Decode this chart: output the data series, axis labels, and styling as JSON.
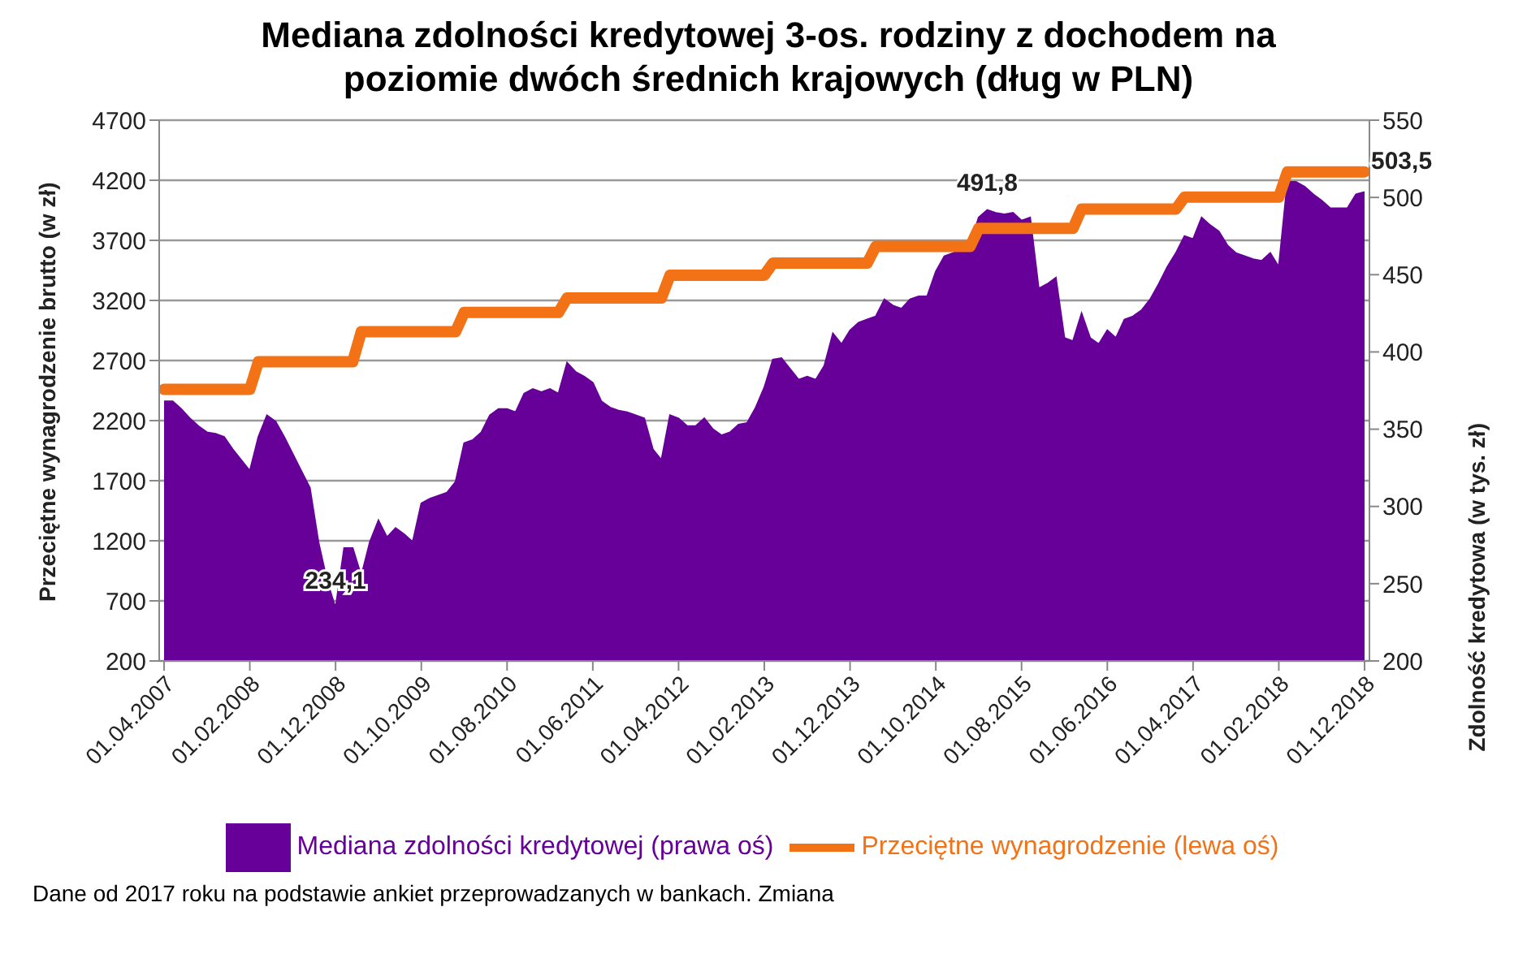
{
  "chart_data": {
    "type": "area",
    "title": "Mediana zdolności kredytowej 3-os. rodziny z dochodem na poziomie dwóch średnich krajowych (dług w PLN)",
    "ylabel": "Przeciętne wynagrodzenie brutto (w zł)",
    "y2label": "Zdolność kredytowa (w tys. zł)",
    "annotations": [
      "Dane od 2017 roku na podstawie ankiet przeprowadzanych w bankach. Zmiana"
    ],
    "categories": [
      "01.04.2007",
      null,
      null,
      null,
      null,
      null,
      null,
      null,
      null,
      null,
      "01.02.2008",
      null,
      null,
      null,
      null,
      null,
      null,
      null,
      null,
      null,
      "01.12.2008",
      null,
      null,
      null,
      null,
      null,
      null,
      null,
      null,
      null,
      "01.10.2009",
      null,
      null,
      null,
      null,
      null,
      null,
      null,
      null,
      null,
      "01.08.2010",
      null,
      null,
      null,
      null,
      null,
      null,
      null,
      null,
      null,
      "01.06.2011",
      null,
      null,
      null,
      null,
      null,
      null,
      null,
      null,
      null,
      "01.04.2012",
      null,
      null,
      null,
      null,
      null,
      null,
      null,
      null,
      null,
      "01.02.2013",
      null,
      null,
      null,
      null,
      null,
      null,
      null,
      null,
      null,
      "01.12.2013",
      null,
      null,
      null,
      null,
      null,
      null,
      null,
      null,
      null,
      "01.10.2014",
      null,
      null,
      null,
      null,
      null,
      null,
      null,
      null,
      null,
      "01.08.2015",
      null,
      null,
      null,
      null,
      null,
      null,
      null,
      null,
      null,
      "01.06.2016",
      null,
      null,
      null,
      null,
      null,
      null,
      null,
      null,
      null,
      "01.04.2017",
      null,
      null,
      null,
      null,
      null,
      null,
      null,
      null,
      null,
      "01.02.2018",
      null,
      null,
      null,
      null,
      null,
      null,
      null,
      null,
      null,
      "01.12.2018"
    ],
    "series": [
      {
        "name": "Mediana zdolności kredytowej (prawa oś)",
        "axis": "y2",
        "color": "#660099",
        "values": [
          368,
          368,
          363,
          357,
          352,
          348,
          347,
          345,
          337,
          330,
          323,
          345,
          359,
          355,
          345,
          334,
          323,
          312,
          277,
          252,
          234.1,
          273,
          273,
          255,
          277,
          291,
          280,
          286,
          282,
          277,
          302,
          305,
          307,
          309,
          316,
          341,
          343,
          348,
          359,
          363,
          363,
          361,
          373,
          376,
          374,
          376,
          373,
          393,
          387,
          384,
          380,
          368,
          364,
          362,
          361,
          359,
          357,
          337,
          330,
          359,
          357,
          352,
          352,
          357,
          350,
          346,
          348,
          353,
          354,
          364,
          377,
          395,
          396,
          389,
          382,
          384,
          382,
          391,
          412,
          405,
          414,
          419,
          421,
          423,
          434,
          430,
          428,
          434,
          436,
          436,
          452,
          462,
          464,
          466,
          469,
          487,
          491.8,
          490,
          489,
          490,
          485,
          487,
          441,
          444,
          448,
          409,
          407,
          425,
          409,
          405,
          414,
          409,
          421,
          423,
          427,
          434,
          444,
          455,
          464,
          475,
          473,
          487,
          482,
          478,
          469,
          464,
          462,
          460,
          459,
          464,
          455,
          510,
          510,
          507,
          502,
          498,
          493,
          493,
          493,
          502,
          503.5
        ],
        "value_labels": [
          null,
          null,
          null,
          null,
          null,
          null,
          null,
          null,
          null,
          null,
          null,
          null,
          null,
          null,
          null,
          null,
          null,
          null,
          null,
          null,
          "234,1",
          null,
          null,
          null,
          null,
          null,
          null,
          null,
          null,
          null,
          null,
          null,
          null,
          null,
          null,
          null,
          null,
          null,
          null,
          null,
          null,
          null,
          null,
          null,
          null,
          null,
          null,
          null,
          null,
          null,
          null,
          null,
          null,
          null,
          null,
          null,
          null,
          null,
          null,
          null,
          null,
          null,
          null,
          null,
          null,
          null,
          null,
          null,
          null,
          null,
          null,
          null,
          null,
          null,
          null,
          null,
          null,
          null,
          null,
          null,
          null,
          null,
          null,
          null,
          null,
          null,
          null,
          null,
          null,
          null,
          null,
          null,
          null,
          null,
          null,
          null,
          "491,8",
          null,
          null,
          null,
          null,
          null,
          null,
          null,
          null,
          null,
          null,
          null,
          null,
          null,
          null,
          null,
          null,
          null,
          null,
          null,
          null,
          null,
          null,
          null,
          null,
          null,
          null,
          null,
          null,
          null,
          null,
          null,
          null,
          null,
          null,
          null,
          null,
          null,
          null,
          null,
          null,
          null,
          null,
          null,
          "503,5"
        ]
      },
      {
        "name": "Przeciętne wynagrodzenie (lewa oś)",
        "type": "line",
        "axis": "y",
        "color": "#f47216",
        "values": [
          2460,
          2460,
          2460,
          2460,
          2460,
          2460,
          2460,
          2460,
          2460,
          2460,
          2460,
          2690,
          2690,
          2690,
          2690,
          2690,
          2690,
          2690,
          2690,
          2690,
          2690,
          2690,
          2690,
          2940,
          2940,
          2940,
          2940,
          2940,
          2940,
          2940,
          2940,
          2940,
          2940,
          2940,
          2940,
          3100,
          3100,
          3100,
          3100,
          3100,
          3100,
          3100,
          3100,
          3100,
          3100,
          3100,
          3100,
          3220,
          3220,
          3220,
          3220,
          3220,
          3220,
          3220,
          3220,
          3220,
          3220,
          3220,
          3220,
          3410,
          3410,
          3410,
          3410,
          3410,
          3410,
          3410,
          3410,
          3410,
          3410,
          3410,
          3410,
          3510,
          3510,
          3510,
          3510,
          3510,
          3510,
          3510,
          3510,
          3510,
          3510,
          3510,
          3510,
          3650,
          3650,
          3650,
          3650,
          3650,
          3650,
          3650,
          3650,
          3650,
          3650,
          3650,
          3650,
          3800,
          3800,
          3800,
          3800,
          3800,
          3800,
          3800,
          3800,
          3800,
          3800,
          3800,
          3800,
          3960,
          3960,
          3960,
          3960,
          3960,
          3960,
          3960,
          3960,
          3960,
          3960,
          3960,
          3960,
          4060,
          4060,
          4060,
          4060,
          4060,
          4060,
          4060,
          4060,
          4060,
          4060,
          4060,
          4060,
          4270,
          4270,
          4270,
          4270,
          4270,
          4270,
          4270,
          4270,
          4270,
          4270
        ]
      }
    ],
    "ylim": [
      200,
      4700
    ],
    "yticks": [
      200,
      700,
      1200,
      1700,
      2200,
      2700,
      3200,
      3700,
      4200,
      4700
    ],
    "y2lim": [
      200,
      550
    ],
    "y2ticks": [
      200,
      250,
      300,
      350,
      400,
      450,
      500,
      550
    ],
    "grid": "y",
    "legend": "bottom",
    "marker": "none",
    "line_style": "solid"
  }
}
